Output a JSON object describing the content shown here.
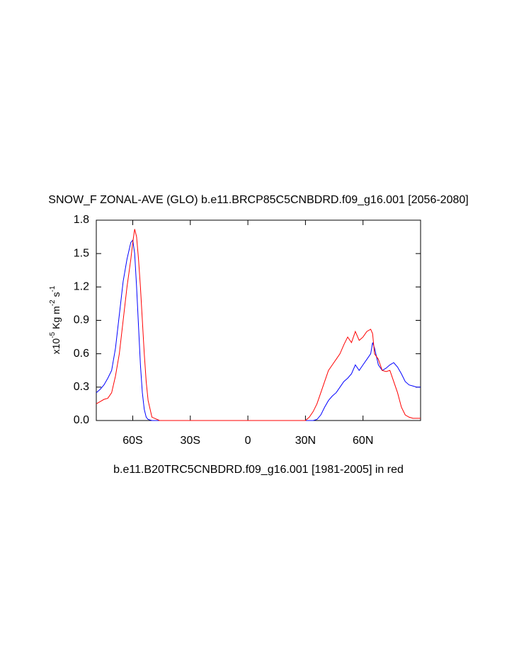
{
  "chart_data": {
    "type": "line",
    "title": "SNOW_F ZONAL-AVE (GLO) b.e11.BRCP85C5CNBDRD.f09_g16.001 [2056-2080]",
    "xlabel": "b.e11.B20TRC5CNBDRD.f09_g16.001 [1981-2005] in red",
    "ylabel": [
      "x10",
      "-5",
      " Kg m",
      "-2",
      " s",
      "-1"
    ],
    "x": [
      -79,
      -77,
      -75,
      -73,
      -71,
      -69,
      -67,
      -65,
      -63,
      -61,
      -60,
      -59,
      -58,
      -57,
      -56,
      -55,
      -54,
      -53,
      -52,
      -50,
      -46,
      -40,
      0,
      30,
      32,
      34,
      36,
      38,
      40,
      42,
      44,
      46,
      48,
      50,
      52,
      54,
      56,
      58,
      60,
      62,
      64,
      65,
      66,
      68,
      70,
      72,
      74,
      76,
      78,
      80,
      82,
      84,
      86,
      88,
      90
    ],
    "series": [
      {
        "color": "#0000ff",
        "values": [
          0.25,
          0.28,
          0.32,
          0.38,
          0.45,
          0.65,
          0.95,
          1.25,
          1.45,
          1.6,
          1.62,
          1.5,
          1.2,
          0.85,
          0.5,
          0.25,
          0.1,
          0.03,
          0.01,
          0,
          0,
          0,
          0,
          0,
          0,
          0,
          0.01,
          0.05,
          0.12,
          0.18,
          0.22,
          0.25,
          0.3,
          0.35,
          0.38,
          0.42,
          0.5,
          0.45,
          0.5,
          0.55,
          0.6,
          0.7,
          0.65,
          0.5,
          0.45,
          0.47,
          0.5,
          0.52,
          0.48,
          0.42,
          0.35,
          0.32,
          0.31,
          0.3,
          0.3
        ]
      },
      {
        "color": "#ff0000",
        "values": [
          0.15,
          0.17,
          0.19,
          0.2,
          0.25,
          0.4,
          0.6,
          0.9,
          1.2,
          1.45,
          1.6,
          1.72,
          1.65,
          1.45,
          1.2,
          0.9,
          0.6,
          0.35,
          0.18,
          0.03,
          0,
          0,
          0,
          0,
          0.03,
          0.08,
          0.15,
          0.25,
          0.35,
          0.45,
          0.5,
          0.55,
          0.6,
          0.68,
          0.75,
          0.7,
          0.8,
          0.72,
          0.75,
          0.8,
          0.82,
          0.78,
          0.6,
          0.55,
          0.45,
          0.44,
          0.45,
          0.35,
          0.25,
          0.12,
          0.05,
          0.03,
          0.02,
          0.02,
          0.02
        ]
      }
    ],
    "xlim": [
      -79,
      90
    ],
    "xticks": [
      {
        "value": -60,
        "label": "60S"
      },
      {
        "value": -30,
        "label": "30S"
      },
      0,
      {
        "value": 30,
        "label": "30N"
      },
      {
        "value": 60,
        "label": "60N"
      }
    ],
    "ylim": [
      0,
      1.8
    ],
    "yticks": [
      {
        "value": 0,
        "label": "0.0"
      },
      0.3,
      0.6,
      0.9,
      1.2,
      1.5,
      1.8
    ]
  }
}
